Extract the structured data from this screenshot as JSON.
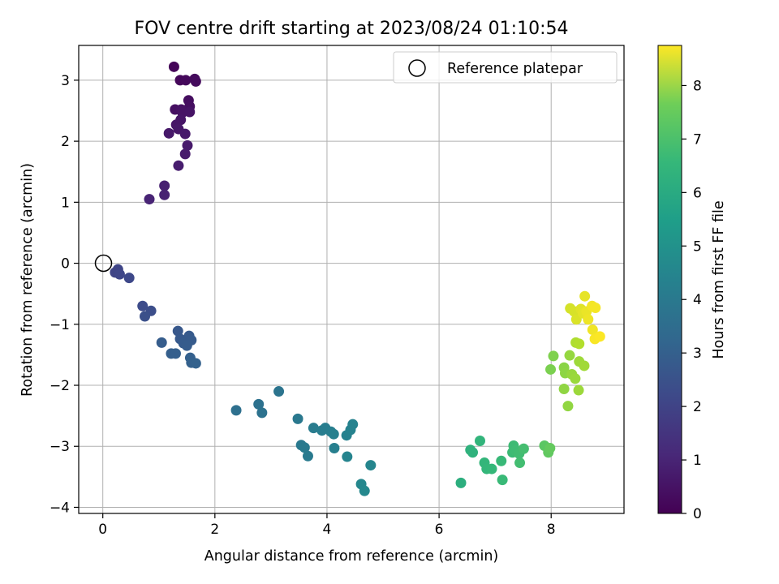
{
  "chart_data": {
    "type": "scatter",
    "title": "FOV centre drift starting at 2023/08/24 01:10:54",
    "xlabel": "Angular distance from reference (arcmin)",
    "ylabel": "Rotation from reference (arcmin)",
    "xlim": [
      -0.43,
      9.3
    ],
    "ylim": [
      -4.1,
      3.57
    ],
    "xticks": [
      0,
      2,
      4,
      6,
      8
    ],
    "yticks": [
      -4,
      -3,
      -2,
      -1,
      0,
      1,
      2,
      3
    ],
    "grid": true,
    "legend": {
      "position": "top-right",
      "entries": [
        "Reference platepar"
      ]
    },
    "reference_point": {
      "x": 0,
      "y": 0,
      "label": "Reference platepar"
    },
    "colorbar": {
      "label": "Hours from first FF file",
      "min": 0,
      "max": 8.75,
      "ticks": [
        0,
        1,
        2,
        3,
        4,
        5,
        6,
        7,
        8
      ],
      "colormap": "viridis"
    },
    "points": [
      {
        "x": 1.27,
        "y": 3.22,
        "h": 0.1
      },
      {
        "x": 1.38,
        "y": 3.0,
        "h": 0.15
      },
      {
        "x": 1.48,
        "y": 3.0,
        "h": 0.2
      },
      {
        "x": 1.64,
        "y": 3.02,
        "h": 0.22
      },
      {
        "x": 1.66,
        "y": 2.98,
        "h": 0.25
      },
      {
        "x": 1.53,
        "y": 2.67,
        "h": 0.3
      },
      {
        "x": 1.55,
        "y": 2.57,
        "h": 0.33
      },
      {
        "x": 1.29,
        "y": 2.52,
        "h": 0.36
      },
      {
        "x": 1.4,
        "y": 2.52,
        "h": 0.4
      },
      {
        "x": 1.42,
        "y": 2.47,
        "h": 0.42
      },
      {
        "x": 1.55,
        "y": 2.48,
        "h": 0.45
      },
      {
        "x": 1.39,
        "y": 2.35,
        "h": 0.48
      },
      {
        "x": 1.31,
        "y": 2.27,
        "h": 0.5
      },
      {
        "x": 1.35,
        "y": 2.2,
        "h": 0.55
      },
      {
        "x": 1.18,
        "y": 2.13,
        "h": 0.58
      },
      {
        "x": 1.47,
        "y": 2.12,
        "h": 0.6
      },
      {
        "x": 1.51,
        "y": 1.93,
        "h": 0.63
      },
      {
        "x": 1.47,
        "y": 1.79,
        "h": 0.66
      },
      {
        "x": 1.35,
        "y": 1.6,
        "h": 0.7
      },
      {
        "x": 1.1,
        "y": 1.27,
        "h": 0.78
      },
      {
        "x": 1.1,
        "y": 1.12,
        "h": 0.82
      },
      {
        "x": 0.83,
        "y": 1.05,
        "h": 0.88
      },
      {
        "x": 0.22,
        "y": -0.15,
        "h": 1.8
      },
      {
        "x": 0.27,
        "y": -0.1,
        "h": 1.82
      },
      {
        "x": 0.3,
        "y": -0.18,
        "h": 1.86
      },
      {
        "x": 0.47,
        "y": -0.24,
        "h": 1.92
      },
      {
        "x": 0.71,
        "y": -0.7,
        "h": 2.05
      },
      {
        "x": 0.86,
        "y": -0.78,
        "h": 2.1
      },
      {
        "x": 0.75,
        "y": -0.87,
        "h": 2.15
      },
      {
        "x": 1.34,
        "y": -1.11,
        "h": 2.4
      },
      {
        "x": 1.38,
        "y": -1.24,
        "h": 2.45
      },
      {
        "x": 1.54,
        "y": -1.19,
        "h": 2.48
      },
      {
        "x": 1.58,
        "y": -1.26,
        "h": 2.5
      },
      {
        "x": 1.44,
        "y": -1.31,
        "h": 2.52
      },
      {
        "x": 1.5,
        "y": -1.35,
        "h": 2.55
      },
      {
        "x": 1.05,
        "y": -1.3,
        "h": 2.58
      },
      {
        "x": 1.22,
        "y": -1.48,
        "h": 2.62
      },
      {
        "x": 1.3,
        "y": -1.48,
        "h": 2.65
      },
      {
        "x": 1.56,
        "y": -1.55,
        "h": 2.68
      },
      {
        "x": 1.58,
        "y": -1.63,
        "h": 2.7
      },
      {
        "x": 1.66,
        "y": -1.64,
        "h": 2.72
      },
      {
        "x": 2.38,
        "y": -2.41,
        "h": 3.2
      },
      {
        "x": 2.78,
        "y": -2.31,
        "h": 3.25
      },
      {
        "x": 2.84,
        "y": -2.45,
        "h": 3.28
      },
      {
        "x": 3.14,
        "y": -2.1,
        "h": 3.35
      },
      {
        "x": 3.48,
        "y": -2.55,
        "h": 3.5
      },
      {
        "x": 3.54,
        "y": -2.98,
        "h": 3.55
      },
      {
        "x": 3.6,
        "y": -3.02,
        "h": 3.58
      },
      {
        "x": 3.66,
        "y": -3.16,
        "h": 3.6
      },
      {
        "x": 3.76,
        "y": -2.7,
        "h": 3.65
      },
      {
        "x": 3.91,
        "y": -2.74,
        "h": 3.7
      },
      {
        "x": 3.97,
        "y": -2.7,
        "h": 3.72
      },
      {
        "x": 4.07,
        "y": -2.76,
        "h": 3.75
      },
      {
        "x": 4.13,
        "y": -3.03,
        "h": 3.78
      },
      {
        "x": 4.12,
        "y": -2.8,
        "h": 3.8
      },
      {
        "x": 4.35,
        "y": -2.82,
        "h": 3.85
      },
      {
        "x": 4.42,
        "y": -2.73,
        "h": 3.88
      },
      {
        "x": 4.46,
        "y": -2.64,
        "h": 3.9
      },
      {
        "x": 4.36,
        "y": -3.17,
        "h": 3.95
      },
      {
        "x": 4.78,
        "y": -3.31,
        "h": 4.0
      },
      {
        "x": 4.61,
        "y": -3.62,
        "h": 4.05
      },
      {
        "x": 4.67,
        "y": -3.73,
        "h": 4.08
      },
      {
        "x": 6.39,
        "y": -3.6,
        "h": 5.5
      },
      {
        "x": 6.56,
        "y": -3.06,
        "h": 5.6
      },
      {
        "x": 6.6,
        "y": -3.1,
        "h": 5.62
      },
      {
        "x": 6.73,
        "y": -2.91,
        "h": 5.7
      },
      {
        "x": 6.81,
        "y": -3.27,
        "h": 5.75
      },
      {
        "x": 6.85,
        "y": -3.37,
        "h": 5.78
      },
      {
        "x": 6.94,
        "y": -3.37,
        "h": 5.82
      },
      {
        "x": 7.11,
        "y": -3.24,
        "h": 5.88
      },
      {
        "x": 7.13,
        "y": -3.55,
        "h": 5.9
      },
      {
        "x": 7.31,
        "y": -3.1,
        "h": 5.95
      },
      {
        "x": 7.33,
        "y": -2.99,
        "h": 5.98
      },
      {
        "x": 7.36,
        "y": -3.07,
        "h": 6.0
      },
      {
        "x": 7.43,
        "y": -3.12,
        "h": 6.05
      },
      {
        "x": 7.44,
        "y": -3.27,
        "h": 6.08
      },
      {
        "x": 7.51,
        "y": -3.04,
        "h": 6.12
      },
      {
        "x": 7.88,
        "y": -2.99,
        "h": 6.5
      },
      {
        "x": 7.95,
        "y": -3.1,
        "h": 6.6
      },
      {
        "x": 7.98,
        "y": -3.03,
        "h": 6.65
      },
      {
        "x": 7.99,
        "y": -1.74,
        "h": 7.0
      },
      {
        "x": 8.04,
        "y": -1.52,
        "h": 7.05
      },
      {
        "x": 8.23,
        "y": -1.71,
        "h": 7.2
      },
      {
        "x": 8.25,
        "y": -1.8,
        "h": 7.25
      },
      {
        "x": 8.23,
        "y": -2.06,
        "h": 7.28
      },
      {
        "x": 8.3,
        "y": -2.34,
        "h": 7.3
      },
      {
        "x": 8.33,
        "y": -1.51,
        "h": 7.35
      },
      {
        "x": 8.37,
        "y": -1.82,
        "h": 7.38
      },
      {
        "x": 8.43,
        "y": -1.89,
        "h": 7.42
      },
      {
        "x": 8.49,
        "y": -2.08,
        "h": 7.45
      },
      {
        "x": 8.5,
        "y": -1.61,
        "h": 7.48
      },
      {
        "x": 8.59,
        "y": -1.68,
        "h": 7.52
      },
      {
        "x": 8.44,
        "y": -1.3,
        "h": 7.7
      },
      {
        "x": 8.5,
        "y": -1.32,
        "h": 7.75
      },
      {
        "x": 8.34,
        "y": -0.74,
        "h": 8.2
      },
      {
        "x": 8.41,
        "y": -0.79,
        "h": 8.25
      },
      {
        "x": 8.45,
        "y": -0.92,
        "h": 8.28
      },
      {
        "x": 8.53,
        "y": -0.75,
        "h": 8.35
      },
      {
        "x": 8.57,
        "y": -0.82,
        "h": 8.4
      },
      {
        "x": 8.6,
        "y": -0.54,
        "h": 8.45
      },
      {
        "x": 8.63,
        "y": -0.79,
        "h": 8.5
      },
      {
        "x": 8.66,
        "y": -0.92,
        "h": 8.55
      },
      {
        "x": 8.74,
        "y": -1.09,
        "h": 8.58
      },
      {
        "x": 8.73,
        "y": -0.7,
        "h": 8.62
      },
      {
        "x": 8.79,
        "y": -0.73,
        "h": 8.65
      },
      {
        "x": 8.78,
        "y": -1.24,
        "h": 8.68
      },
      {
        "x": 8.87,
        "y": -1.2,
        "h": 8.72
      }
    ]
  }
}
